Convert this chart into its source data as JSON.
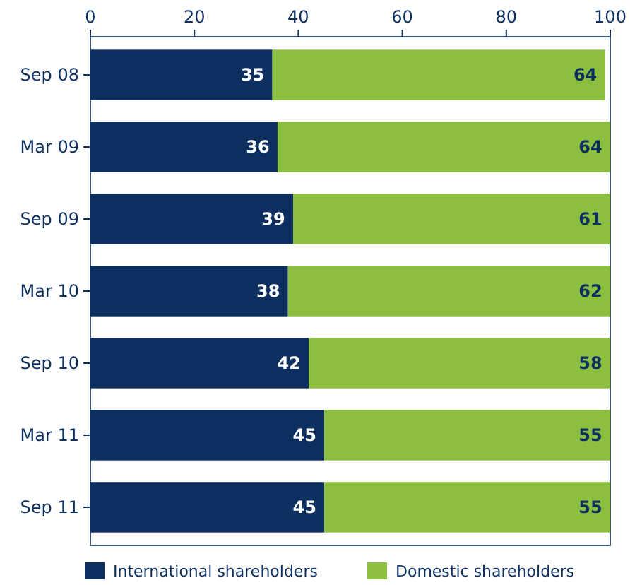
{
  "chart_data": {
    "type": "bar",
    "orientation": "horizontal",
    "stacked": true,
    "categories": [
      "Sep 08",
      "Mar 09",
      "Sep 09",
      "Mar 10",
      "Sep 10",
      "Mar 11",
      "Sep 11"
    ],
    "series": [
      {
        "name": "International shareholders",
        "color": "#0c2f5f",
        "values": [
          35,
          36,
          39,
          38,
          42,
          45,
          45
        ]
      },
      {
        "name": "Domestic shareholders",
        "color": "#8cbf3f",
        "values": [
          64,
          64,
          61,
          62,
          58,
          55,
          55
        ]
      }
    ],
    "xlim": [
      0,
      100
    ],
    "xticks": [
      0,
      20,
      40,
      60,
      80,
      100
    ],
    "data_labels": true,
    "legend": "bottom"
  }
}
